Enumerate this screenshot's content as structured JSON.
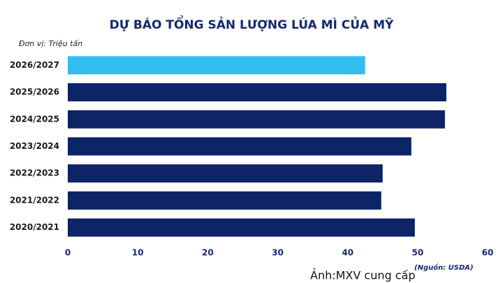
{
  "chart_data": {
    "type": "barh",
    "title": "DỰ BÁO TỔNG SẢN LƯỢNG LÚA MÌ CỦA MỸ",
    "unit_label": "Đơn vị: Triệu tấn",
    "source": "(Nguồn: USDA)",
    "credit": "Ảnh:MXV cung cấp",
    "categories": [
      "2026/2027",
      "2025/2026",
      "2024/2025",
      "2023/2024",
      "2022/2023",
      "2021/2022",
      "2020/2021"
    ],
    "values": [
      42.5,
      54.1,
      53.9,
      49.1,
      45.0,
      44.8,
      49.6
    ],
    "colors": [
      "#33bdef",
      "#0d2466",
      "#0d2466",
      "#0d2466",
      "#0d2466",
      "#0d2466",
      "#0d2466"
    ],
    "xlim": [
      0,
      60
    ],
    "xticks": [
      0,
      10,
      20,
      30,
      40,
      50,
      60
    ],
    "grid": false
  }
}
